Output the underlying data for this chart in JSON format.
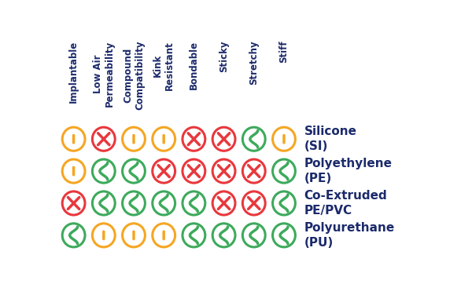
{
  "columns": [
    "Implantable",
    "Low Air\nPermeability",
    "Compound\nCompatibility",
    "Kink\nResistant",
    "Bondable",
    "Sticky",
    "Stretchy",
    "Stiff"
  ],
  "rows": [
    "Silicone\n(SI)",
    "Polyethylene\n(PE)",
    "Co-Extruded\nPE/PVC",
    "Polyurethane\n(PU)"
  ],
  "grid": [
    [
      "yellow_neutral",
      "red_bad",
      "yellow_neutral",
      "yellow_neutral",
      "red_bad",
      "red_bad",
      "green_good",
      "yellow_neutral"
    ],
    [
      "yellow_neutral",
      "green_good",
      "green_good",
      "red_bad",
      "red_bad",
      "red_bad",
      "red_bad",
      "green_good"
    ],
    [
      "red_bad",
      "green_good",
      "green_good",
      "green_good",
      "green_good",
      "red_bad",
      "red_bad",
      "green_good"
    ],
    [
      "green_good",
      "yellow_neutral",
      "yellow_neutral",
      "yellow_neutral",
      "green_good",
      "green_good",
      "green_good",
      "green_good"
    ]
  ],
  "colors": {
    "yellow": "#F5A623",
    "red": "#E8383D",
    "green": "#3DAA5C",
    "dark_navy": "#1B2A6B",
    "background": "#FFFFFF"
  },
  "col_header_fontsize": 8.5,
  "row_label_fontsize": 11,
  "figsize": [
    6.0,
    3.62
  ],
  "dpi": 100
}
